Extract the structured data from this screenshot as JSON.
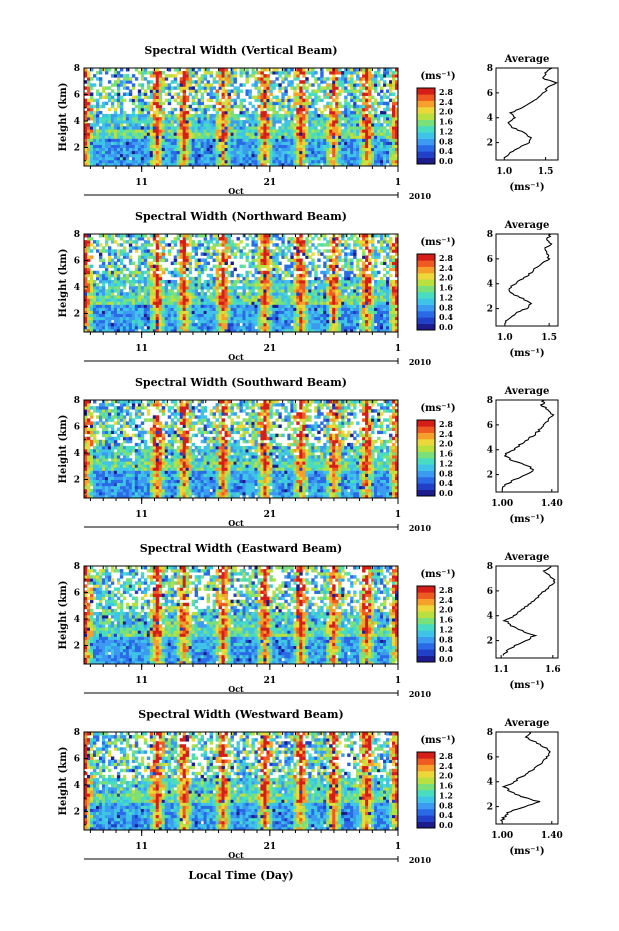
{
  "figure": {
    "xlabel": "Local Time (Day)",
    "x_month_label": "Oct",
    "x_year_label": "2010",
    "x_tick_labels": [
      "11",
      "21",
      "1"
    ],
    "ylabel": "Height (km)",
    "avg_title": "Average",
    "unit_label": "(ms⁻¹)",
    "colormap": [
      "#1c1c8c",
      "#2040c8",
      "#2a6ae6",
      "#3c9af0",
      "#3fc4e8",
      "#48dcc0",
      "#7ae07a",
      "#b8e040",
      "#ecd83a",
      "#f6a02c",
      "#ef5a22",
      "#d61e18"
    ]
  },
  "chart_data": [
    {
      "type": "heatmap",
      "title": "Spectral Width (Vertical Beam)",
      "ylabel": "Height (km)",
      "xlabel": "",
      "ylim": [
        0.6,
        8
      ],
      "y_ticks": [
        2,
        4,
        6,
        8
      ],
      "x_ticks": [
        {
          "day": 11,
          "label": "11"
        },
        {
          "day": 21,
          "label": "21"
        },
        {
          "day": 31,
          "label": "1"
        }
      ],
      "x_range_days": [
        6.5,
        31
      ],
      "colorbar": {
        "ticks": [
          "0.0",
          "0.4",
          "0.8",
          "1.2",
          "1.6",
          "2.0",
          "2.4",
          "2.8"
        ],
        "max": 3.0
      },
      "average_profile": {
        "title": "Average",
        "xlabel": "(ms⁻¹)",
        "xlim": [
          0.9,
          1.65
        ],
        "x_ticks": [
          1.0,
          1.5
        ],
        "x_tick_labels": [
          "1.0",
          "1.5"
        ],
        "ylim": [
          0.6,
          8
        ],
        "y_ticks": [
          2,
          4,
          6,
          8
        ],
        "height_km": [
          0.8,
          1.2,
          1.6,
          2.0,
          2.4,
          2.8,
          3.2,
          3.6,
          4.0,
          4.4,
          4.8,
          5.2,
          5.6,
          6.0,
          6.4,
          6.8,
          7.2,
          7.6,
          8.0
        ],
        "width": [
          1.0,
          1.08,
          1.18,
          1.3,
          1.32,
          1.24,
          1.1,
          1.04,
          1.12,
          1.08,
          1.22,
          1.32,
          1.4,
          1.48,
          1.52,
          1.62,
          1.46,
          1.5,
          1.58
        ]
      }
    },
    {
      "type": "heatmap",
      "title": "Spectral Width (Northward Beam)",
      "ylabel": "Height (km)",
      "xlabel": "",
      "ylim": [
        0.6,
        8
      ],
      "y_ticks": [
        2,
        4,
        6,
        8
      ],
      "x_ticks": [
        {
          "day": 11,
          "label": "11"
        },
        {
          "day": 21,
          "label": "21"
        },
        {
          "day": 31,
          "label": "1"
        }
      ],
      "x_range_days": [
        6.5,
        31
      ],
      "colorbar": {
        "ticks": [
          "0.0",
          "0.4",
          "0.8",
          "1.2",
          "1.6",
          "2.0",
          "2.4",
          "2.8"
        ],
        "max": 3.0
      },
      "average_profile": {
        "title": "Average",
        "xlabel": "(ms⁻¹)",
        "xlim": [
          0.9,
          1.6
        ],
        "x_ticks": [
          1.0,
          1.5
        ],
        "x_tick_labels": [
          "1.0",
          "1.5"
        ],
        "ylim": [
          0.6,
          8
        ],
        "y_ticks": [
          2,
          4,
          6,
          8
        ],
        "height_km": [
          0.8,
          1.2,
          1.6,
          2.0,
          2.4,
          2.8,
          3.2,
          3.6,
          4.0,
          4.4,
          4.8,
          5.2,
          5.6,
          6.0,
          6.4,
          6.8,
          7.2,
          7.6,
          8.0
        ],
        "width": [
          1.0,
          1.04,
          1.12,
          1.24,
          1.3,
          1.2,
          1.08,
          1.04,
          1.12,
          1.2,
          1.28,
          1.34,
          1.4,
          1.5,
          1.48,
          1.44,
          1.52,
          1.48,
          1.52
        ]
      }
    },
    {
      "type": "heatmap",
      "title": "Spectral Width (Southward Beam)",
      "ylabel": "Height (km)",
      "xlabel": "",
      "ylim": [
        0.6,
        8
      ],
      "y_ticks": [
        2,
        4,
        6,
        8
      ],
      "x_ticks": [
        {
          "day": 11,
          "label": "11"
        },
        {
          "day": 21,
          "label": "21"
        },
        {
          "day": 31,
          "label": "1"
        }
      ],
      "x_range_days": [
        6.5,
        31
      ],
      "colorbar": {
        "ticks": [
          "0.0",
          "0.4",
          "0.8",
          "1.2",
          "1.6",
          "2.0",
          "2.4",
          "2.8"
        ],
        "max": 3.0
      },
      "average_profile": {
        "title": "Average",
        "xlabel": "(ms⁻¹)",
        "xlim": [
          0.95,
          1.45
        ],
        "x_ticks": [
          1.0,
          1.4
        ],
        "x_tick_labels": [
          "1.00",
          "1.40"
        ],
        "ylim": [
          0.6,
          8
        ],
        "y_ticks": [
          2,
          4,
          6,
          8
        ],
        "height_km": [
          0.8,
          1.2,
          1.6,
          2.0,
          2.4,
          2.8,
          3.2,
          3.6,
          4.0,
          4.4,
          4.8,
          5.2,
          5.6,
          6.0,
          6.4,
          6.8,
          7.2,
          7.6,
          8.0
        ],
        "width": [
          1.0,
          1.02,
          1.1,
          1.2,
          1.26,
          1.18,
          1.06,
          1.02,
          1.1,
          1.14,
          1.2,
          1.26,
          1.3,
          1.34,
          1.38,
          1.4,
          1.36,
          1.32,
          1.34
        ]
      }
    },
    {
      "type": "heatmap",
      "title": "Spectral Width (Eastward Beam)",
      "ylabel": "Height (km)",
      "xlabel": "",
      "ylim": [
        0.6,
        8
      ],
      "y_ticks": [
        2,
        4,
        6,
        8
      ],
      "x_ticks": [
        {
          "day": 11,
          "label": "11"
        },
        {
          "day": 21,
          "label": "21"
        },
        {
          "day": 31,
          "label": "1"
        }
      ],
      "x_range_days": [
        6.5,
        31
      ],
      "colorbar": {
        "ticks": [
          "0.0",
          "0.4",
          "0.8",
          "1.2",
          "1.6",
          "2.0",
          "2.4",
          "2.8"
        ],
        "max": 3.0
      },
      "average_profile": {
        "title": "Average",
        "xlabel": "(ms⁻¹)",
        "xlim": [
          1.05,
          1.65
        ],
        "x_ticks": [
          1.1,
          1.6
        ],
        "x_tick_labels": [
          "1.1",
          "1.6"
        ],
        "ylim": [
          0.6,
          8
        ],
        "y_ticks": [
          2,
          4,
          6,
          8
        ],
        "height_km": [
          0.8,
          1.2,
          1.6,
          2.0,
          2.4,
          2.8,
          3.2,
          3.6,
          4.0,
          4.4,
          4.8,
          5.2,
          5.6,
          6.0,
          6.4,
          6.8,
          7.2,
          7.6,
          8.0
        ],
        "width": [
          1.12,
          1.16,
          1.24,
          1.34,
          1.42,
          1.3,
          1.2,
          1.14,
          1.22,
          1.28,
          1.36,
          1.42,
          1.46,
          1.52,
          1.58,
          1.62,
          1.56,
          1.52,
          1.58
        ]
      }
    },
    {
      "type": "heatmap",
      "title": "Spectral Width (Westward Beam)",
      "ylabel": "Height (km)",
      "xlabel": "Local Time (Day)",
      "ylim": [
        0.6,
        8
      ],
      "y_ticks": [
        2,
        4,
        6,
        8
      ],
      "x_ticks": [
        {
          "day": 11,
          "label": "11"
        },
        {
          "day": 21,
          "label": "21"
        },
        {
          "day": 31,
          "label": "1"
        }
      ],
      "x_range_days": [
        6.5,
        31
      ],
      "colorbar": {
        "ticks": [
          "0.0",
          "0.4",
          "0.8",
          "1.2",
          "1.6",
          "2.0",
          "2.4",
          "2.8"
        ],
        "max": 3.0
      },
      "average_profile": {
        "title": "Average",
        "xlabel": "(ms⁻¹)",
        "xlim": [
          0.95,
          1.45
        ],
        "x_ticks": [
          1.0,
          1.4
        ],
        "x_tick_labels": [
          "1.00",
          "1.40"
        ],
        "ylim": [
          0.6,
          8
        ],
        "y_ticks": [
          2,
          4,
          6,
          8
        ],
        "height_km": [
          0.8,
          1.2,
          1.6,
          2.0,
          2.4,
          2.8,
          3.2,
          3.6,
          4.0,
          4.4,
          4.8,
          5.2,
          5.6,
          6.0,
          6.4,
          6.8,
          7.2,
          7.6,
          8.0
        ],
        "width": [
          1.0,
          1.02,
          1.06,
          1.18,
          1.3,
          1.16,
          1.06,
          1.02,
          1.1,
          1.16,
          1.22,
          1.28,
          1.32,
          1.36,
          1.4,
          1.34,
          1.26,
          1.2,
          1.22
        ]
      }
    }
  ]
}
